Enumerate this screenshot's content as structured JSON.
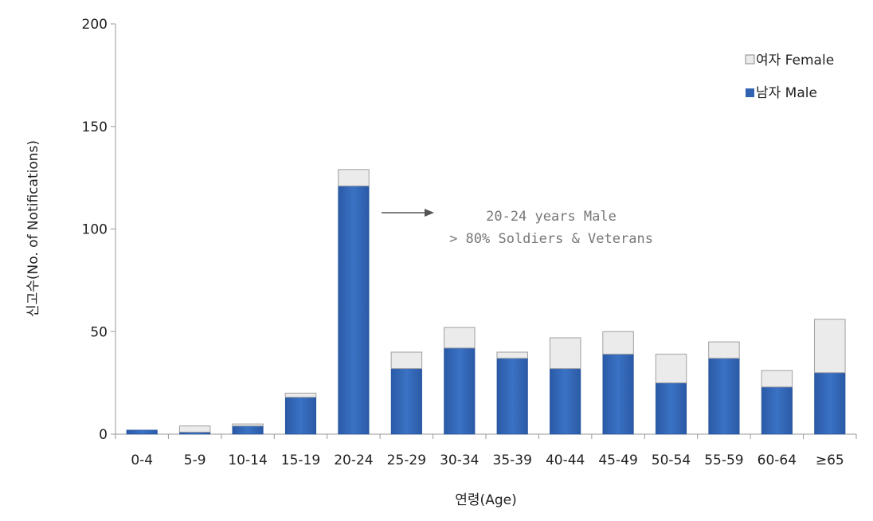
{
  "chart_data": {
    "type": "bar",
    "stacked": true,
    "ylabel": "신고수(No. of Notifications)",
    "xlabel": "연령(Age)",
    "ylim": [
      0,
      200
    ],
    "yticks": [
      0,
      50,
      100,
      150,
      200
    ],
    "categories": [
      "0-4",
      "5-9",
      "10-14",
      "15-19",
      "20-24",
      "25-29",
      "30-34",
      "35-39",
      "40-44",
      "45-49",
      "50-54",
      "55-59",
      "60-64",
      "≥65"
    ],
    "series": [
      {
        "name": "남자 Male",
        "color": "#2f62b0",
        "values": [
          2,
          1,
          4,
          18,
          121,
          32,
          42,
          37,
          32,
          39,
          25,
          37,
          23,
          30
        ]
      },
      {
        "name": "여자 Female",
        "color": "#ebebeb",
        "values": [
          0,
          3,
          1,
          2,
          8,
          8,
          10,
          3,
          15,
          11,
          14,
          8,
          8,
          26
        ]
      }
    ],
    "legend": {
      "position": "top-right",
      "entries": [
        "여자 Female",
        "남자 Male"
      ]
    },
    "annotation": {
      "line1": "20-24 years Male",
      "line2": "> 80% Soldiers & Veterans"
    },
    "grid": false
  }
}
